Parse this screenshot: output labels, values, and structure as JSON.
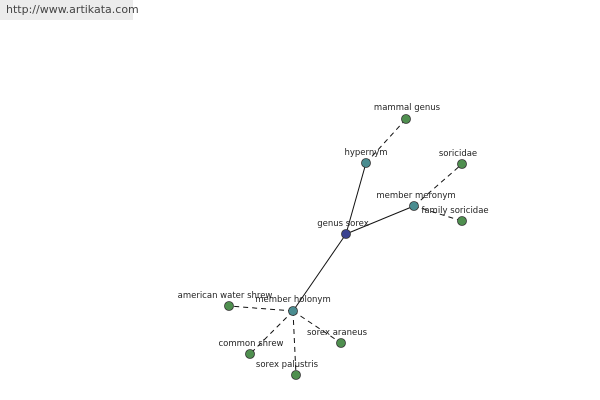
{
  "header": {
    "url": "http://www.artikata.com"
  },
  "nodes": [
    {
      "label": "genus sorex"
    },
    {
      "label": "hypernym"
    },
    {
      "label": "mammal genus"
    },
    {
      "label": "member meronym"
    },
    {
      "label": "soricidae"
    },
    {
      "label": "family soricidae"
    },
    {
      "label": "member holonym"
    },
    {
      "label": "american water shrew"
    },
    {
      "label": "common shrew"
    },
    {
      "label": "sorex palustris"
    },
    {
      "label": "sorex araneus"
    }
  ]
}
